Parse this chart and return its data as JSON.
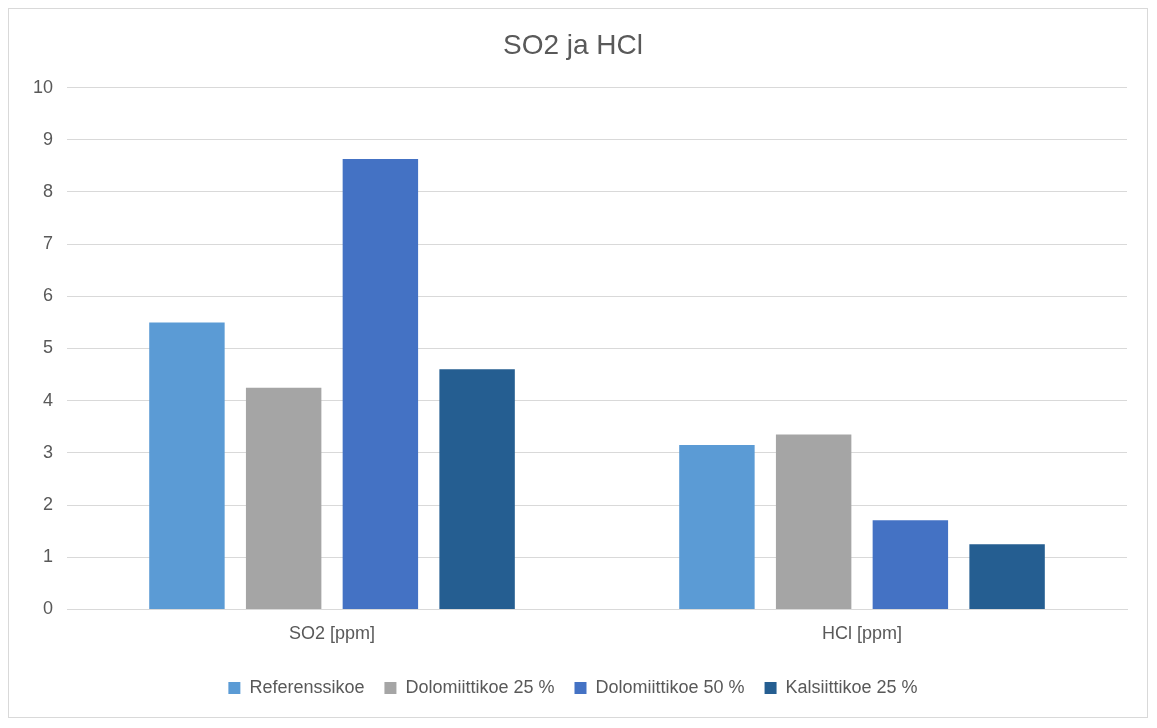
{
  "chart_data": {
    "type": "bar",
    "title": "SO2 ja HCl",
    "categories": [
      "SO2 [ppm]",
      "HCl [ppm]"
    ],
    "series": [
      {
        "name": "Referenssikoe",
        "color": "#5b9bd5",
        "values": [
          5.5,
          3.15
        ]
      },
      {
        "name": "Dolomiittikoe 25 %",
        "color": "#a5a5a5",
        "values": [
          4.25,
          3.35
        ]
      },
      {
        "name": "Dolomiittikoe 50 %",
        "color": "#4472c4",
        "values": [
          8.63,
          1.71
        ]
      },
      {
        "name": "Kalsiittikoe 25 %",
        "color": "#255e91",
        "values": [
          4.6,
          1.25
        ]
      }
    ],
    "ylim": [
      0,
      10
    ],
    "yticks": [
      0,
      1,
      2,
      3,
      4,
      5,
      6,
      7,
      8,
      9,
      10
    ],
    "grid": "y",
    "legend": "bottom"
  }
}
